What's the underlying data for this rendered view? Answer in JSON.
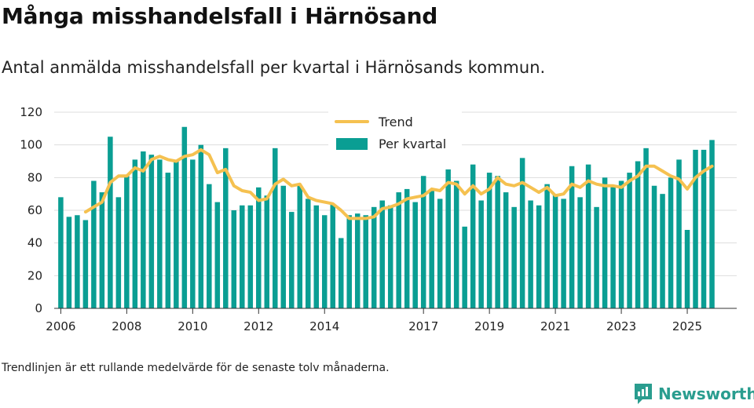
{
  "title": "Många misshandelsfall i Härnösand",
  "subtitle": "Antal anmälda misshandelsfall per kvartal i Härnösands kommun.",
  "footnote": "Trendlinjen är ett rullande medelvärde för de senaste tolv månaderna.",
  "brand": "Newsworthy",
  "colors": {
    "bars": "#0a9e93",
    "trend": "#f5c150",
    "grid": "#dddddd"
  },
  "chart_data": {
    "type": "bar",
    "title": "Antal anmälda misshandelsfall per kvartal i Härnösands kommun.",
    "xlabel": "",
    "ylabel": "",
    "ylim": [
      0,
      120
    ],
    "yticks": [
      0,
      20,
      40,
      60,
      80,
      100,
      120
    ],
    "xlim": [
      2005.8,
      2026.5
    ],
    "xticks": [
      2006,
      2008,
      2010,
      2012,
      2014,
      2017,
      2019,
      2021,
      2023,
      2025
    ],
    "start_year": 2006,
    "legend_position": "top-center",
    "series": [
      {
        "name": "Per kvartal",
        "type": "bar",
        "values": [
          68,
          56,
          57,
          54,
          78,
          71,
          105,
          68,
          81,
          91,
          96,
          94,
          91,
          83,
          90,
          111,
          91,
          100,
          76,
          65,
          98,
          60,
          63,
          63,
          74,
          69,
          98,
          75,
          59,
          75,
          67,
          63,
          57,
          64,
          43,
          57,
          58,
          57,
          62,
          66,
          63,
          71,
          73,
          65,
          81,
          73,
          67,
          85,
          78,
          50,
          88,
          66,
          83,
          81,
          71,
          62,
          92,
          66,
          63,
          76,
          70,
          67,
          87,
          68,
          88,
          62,
          80,
          75,
          78,
          83,
          90,
          98,
          75,
          70,
          80,
          91,
          48,
          97,
          97,
          103
        ]
      },
      {
        "name": "Trend",
        "type": "line",
        "values": [
          null,
          null,
          null,
          59,
          62,
          65,
          77,
          81,
          81,
          86,
          84,
          91,
          93,
          91,
          90,
          93,
          94,
          97,
          94,
          83,
          85,
          75,
          72,
          71,
          66,
          67,
          76,
          79,
          75,
          76,
          68,
          66,
          65,
          64,
          60,
          55,
          55,
          55,
          56,
          61,
          62,
          64,
          67,
          68,
          69,
          73,
          72,
          77,
          76,
          70,
          75,
          70,
          73,
          80,
          76,
          75,
          77,
          74,
          71,
          74,
          69,
          70,
          76,
          74,
          78,
          76,
          75,
          75,
          74,
          78,
          81,
          87,
          87,
          84,
          81,
          79,
          73,
          80,
          84,
          87
        ]
      }
    ]
  }
}
